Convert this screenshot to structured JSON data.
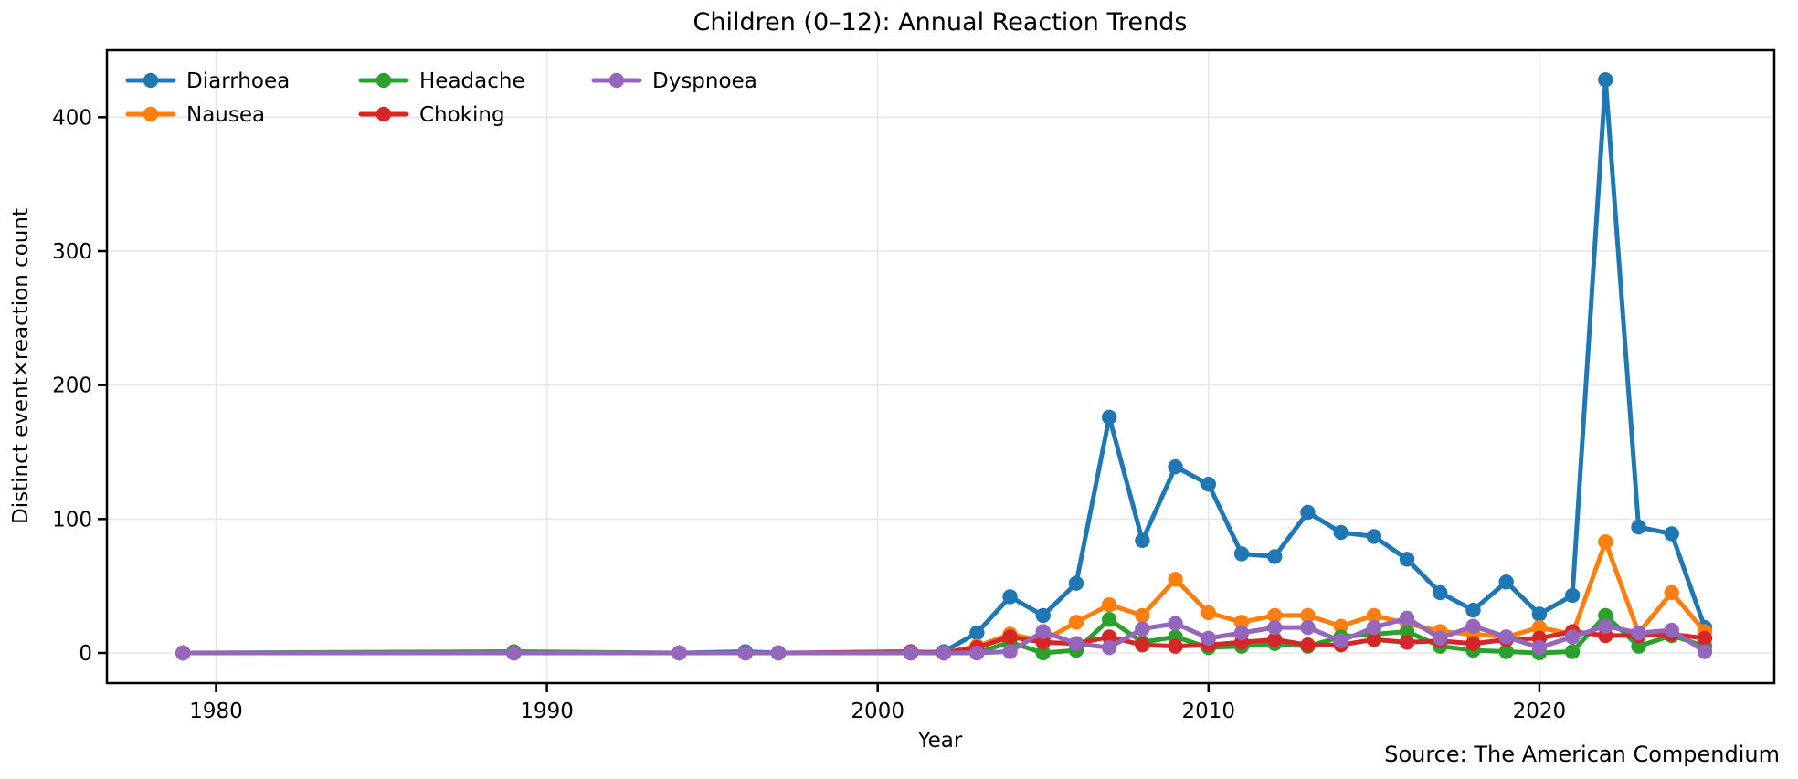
{
  "title": "Children (0–12): Annual Reaction Trends",
  "source_note": "Source: The American Compendium",
  "colors": {
    "background": "#ffffff",
    "grid": "#e7e7e7",
    "spine": "#000000",
    "text": "#000000",
    "source_text": "#708090"
  },
  "chart_data": {
    "type": "line",
    "title": "Children (0–12): Annual Reaction Trends",
    "xlabel": "Year",
    "ylabel": "Distinct event×reaction count",
    "legend_position": "upper-left",
    "legend_columns": 3,
    "grid": true,
    "marker": "circle",
    "x_ticks": [
      1980,
      1990,
      2000,
      2010,
      2020
    ],
    "y_ticks": [
      0,
      100,
      200,
      300,
      400
    ],
    "xlim": [
      1976.7,
      2027.1
    ],
    "ylim": [
      -22.5,
      450
    ],
    "x": [
      1979,
      1989,
      1994,
      1996,
      1997,
      2001,
      2002,
      2003,
      2004,
      2005,
      2006,
      2007,
      2008,
      2009,
      2010,
      2011,
      2012,
      2013,
      2014,
      2015,
      2016,
      2017,
      2018,
      2019,
      2020,
      2021,
      2022,
      2023,
      2024,
      2025
    ],
    "series": [
      {
        "name": "Diarrhoea",
        "color": "#1f77b4",
        "values": [
          0,
          0,
          0,
          1,
          0,
          0,
          1,
          15,
          42,
          28,
          52,
          176,
          84,
          139,
          126,
          74,
          72,
          105,
          90,
          87,
          70,
          45,
          32,
          53,
          29,
          43,
          428,
          94,
          89,
          19
        ]
      },
      {
        "name": "Nausea",
        "color": "#ff7f0e",
        "values": [
          0,
          0,
          0,
          0,
          0,
          0,
          0,
          5,
          14,
          9,
          23,
          36,
          28,
          55,
          30,
          23,
          28,
          28,
          20,
          28,
          22,
          16,
          14,
          12,
          19,
          14,
          83,
          15,
          45,
          16
        ]
      },
      {
        "name": "Headache",
        "color": "#2ca02c",
        "values": [
          0,
          1,
          0,
          0,
          0,
          0,
          0,
          0,
          8,
          0,
          2,
          25,
          8,
          12,
          4,
          5,
          7,
          5,
          12,
          14,
          16,
          5,
          2,
          1,
          0,
          1,
          28,
          5,
          13,
          5
        ]
      },
      {
        "name": "Choking",
        "color": "#d62728",
        "values": [
          0,
          0,
          0,
          0,
          0,
          1,
          0,
          4,
          12,
          8,
          7,
          12,
          6,
          5,
          6,
          8,
          10,
          6,
          6,
          10,
          8,
          9,
          7,
          10,
          11,
          16,
          13,
          13,
          14,
          11
        ]
      },
      {
        "name": "Dyspnoea",
        "color": "#9467bd",
        "values": [
          0,
          0,
          0,
          0,
          0,
          0,
          0,
          0,
          1,
          16,
          7,
          4,
          18,
          22,
          11,
          15,
          19,
          19,
          9,
          19,
          26,
          11,
          20,
          12,
          4,
          12,
          20,
          15,
          17,
          1
        ]
      }
    ]
  }
}
